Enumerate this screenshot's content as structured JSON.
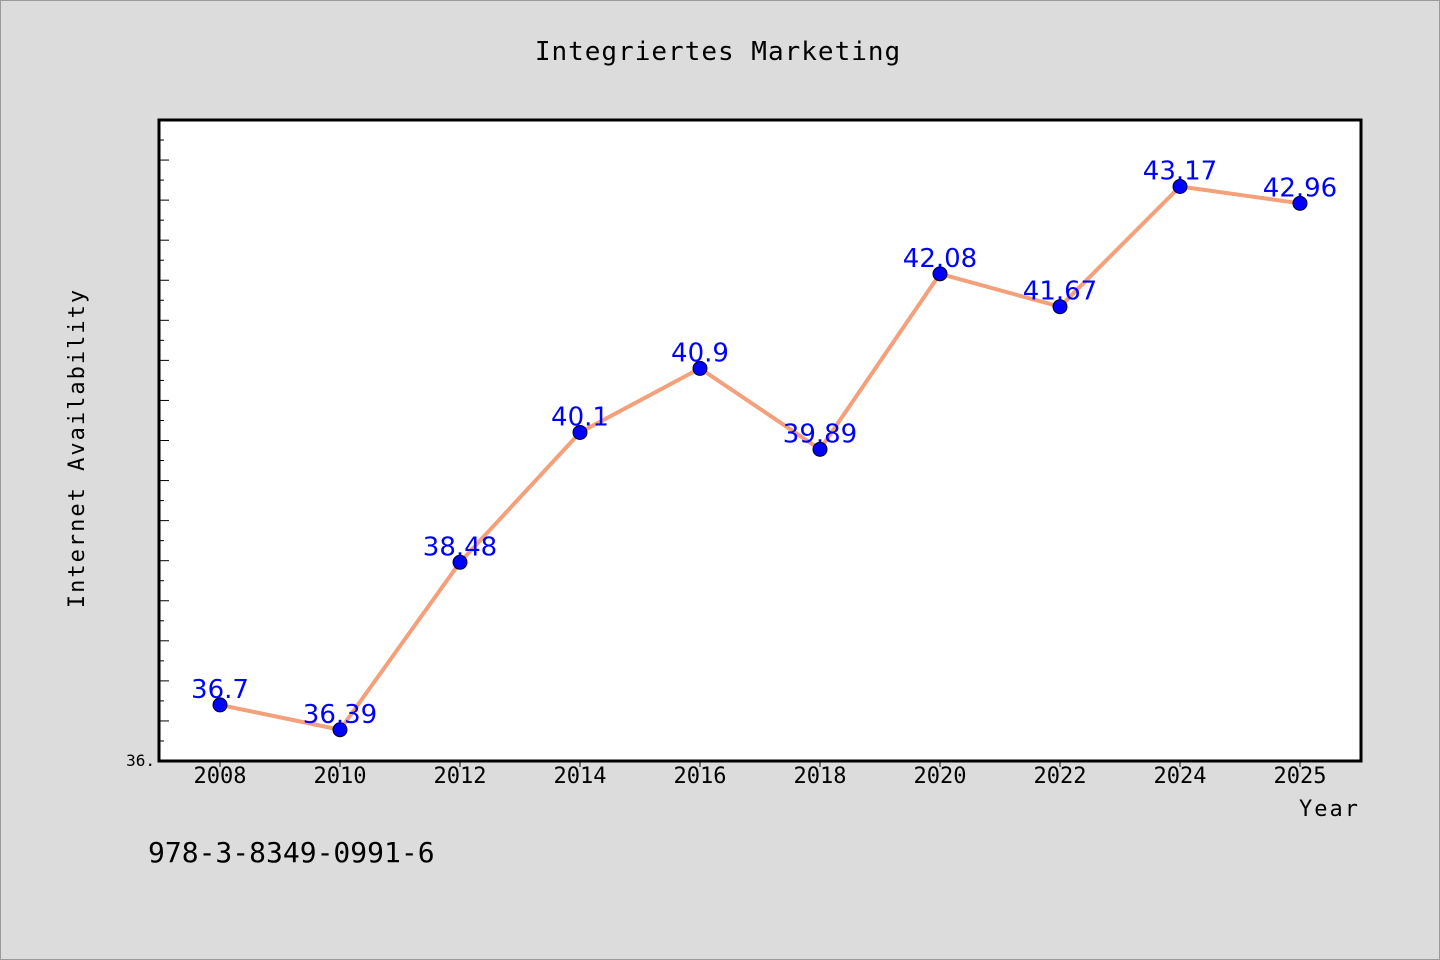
{
  "chart_data": {
    "type": "line",
    "title": "Integriertes Marketing",
    "xlabel": "Year",
    "ylabel": "Internet Availability",
    "categories": [
      "2008",
      "2010",
      "2012",
      "2014",
      "2016",
      "2018",
      "2020",
      "2022",
      "2024",
      "2025"
    ],
    "series": [
      {
        "values": [
          36.7,
          36.39,
          38.48,
          40.1,
          40.9,
          39.89,
          42.08,
          41.67,
          43.17,
          42.96
        ]
      }
    ],
    "data_labels": [
      "36.7",
      "36.39",
      "38.48",
      "40.1",
      "40.9",
      "39.89",
      "42.08",
      "41.67",
      "43.17",
      "42.96"
    ],
    "ylim": [
      36.0,
      44.0
    ],
    "ytick_label": "36.",
    "grid": false,
    "legend": "none",
    "colors": {
      "line": "#f4a07a",
      "marker": "#0000ff",
      "data_label": "#0000ff",
      "plot_background": "#ffffff",
      "figure_background": "#dcdcdc"
    }
  },
  "footnote": "978-3-8349-0991-6"
}
